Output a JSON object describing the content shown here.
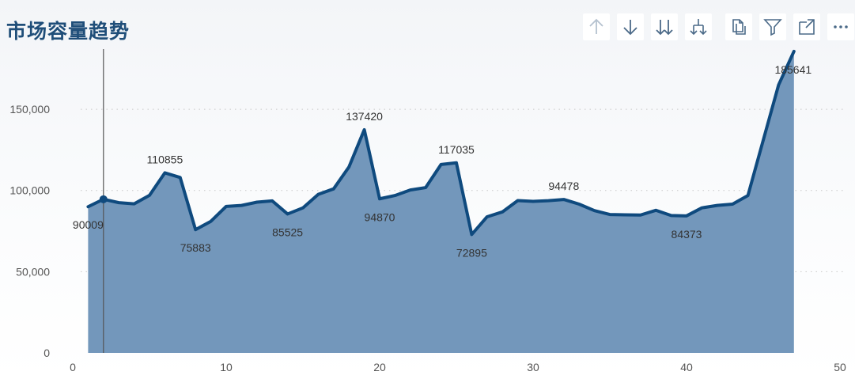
{
  "page": {
    "title": "市场容量趋势"
  },
  "toolbar": {
    "icons": [
      "arrow-up-icon",
      "arrow-down-icon",
      "double-arrow-down-icon",
      "drill-down-icon",
      "copy-icon",
      "filter-icon",
      "expand-icon",
      "more-icon"
    ]
  },
  "colors": {
    "line": "#0f4a7e",
    "area": "#7397bb",
    "title": "#1f4e79",
    "crosshair": "#555555",
    "grid": "#c8c8c8"
  },
  "chart_data": {
    "type": "area",
    "title": "市场容量趋势",
    "xlabel": "",
    "ylabel": "",
    "xlim": [
      0,
      50
    ],
    "ylim": [
      0,
      190000
    ],
    "xticks": [
      0,
      10,
      20,
      30,
      40,
      50
    ],
    "yticks": [
      0,
      50000,
      100000,
      150000
    ],
    "ytick_labels": [
      "0",
      "50,000",
      "100,000",
      "150,000"
    ],
    "grid": "horizontal-dotted",
    "legend": "none",
    "x": [
      1,
      2,
      3,
      4,
      5,
      6,
      7,
      8,
      9,
      10,
      11,
      12,
      13,
      14,
      15,
      16,
      17,
      18,
      19,
      20,
      21,
      22,
      23,
      24,
      25,
      26,
      27,
      28,
      29,
      30,
      31,
      32,
      33,
      34,
      35,
      36,
      37,
      38,
      39,
      40,
      41,
      42,
      43,
      44,
      45,
      46,
      47
    ],
    "values": [
      90009,
      94600,
      92500,
      91800,
      97000,
      110855,
      108000,
      75883,
      81000,
      90200,
      90800,
      92800,
      93600,
      85525,
      89300,
      97600,
      101000,
      114500,
      137420,
      94870,
      96900,
      100300,
      101800,
      116000,
      117035,
      72895,
      83800,
      86800,
      93800,
      93300,
      93700,
      94478,
      91600,
      87600,
      85200,
      85000,
      84900,
      87800,
      84600,
      84373,
      89300,
      90800,
      91600,
      96900,
      131000,
      165000,
      185641
    ],
    "annotations": [
      {
        "x": 1,
        "value": 90009,
        "label": "90009"
      },
      {
        "x": 6,
        "value": 110855,
        "label": "110855"
      },
      {
        "x": 8,
        "value": 75883,
        "label": "75883"
      },
      {
        "x": 14,
        "value": 85525,
        "label": "85525"
      },
      {
        "x": 19,
        "value": 137420,
        "label": "137420"
      },
      {
        "x": 20,
        "value": 94870,
        "label": "94870"
      },
      {
        "x": 25,
        "value": 117035,
        "label": "117035"
      },
      {
        "x": 26,
        "value": 72895,
        "label": "72895"
      },
      {
        "x": 32,
        "value": 94478,
        "label": "94478"
      },
      {
        "x": 40,
        "value": 84373,
        "label": "84373"
      },
      {
        "x": 47,
        "value": 185641,
        "label": "185641"
      }
    ],
    "hover": {
      "x": 2,
      "value": 94600
    }
  }
}
